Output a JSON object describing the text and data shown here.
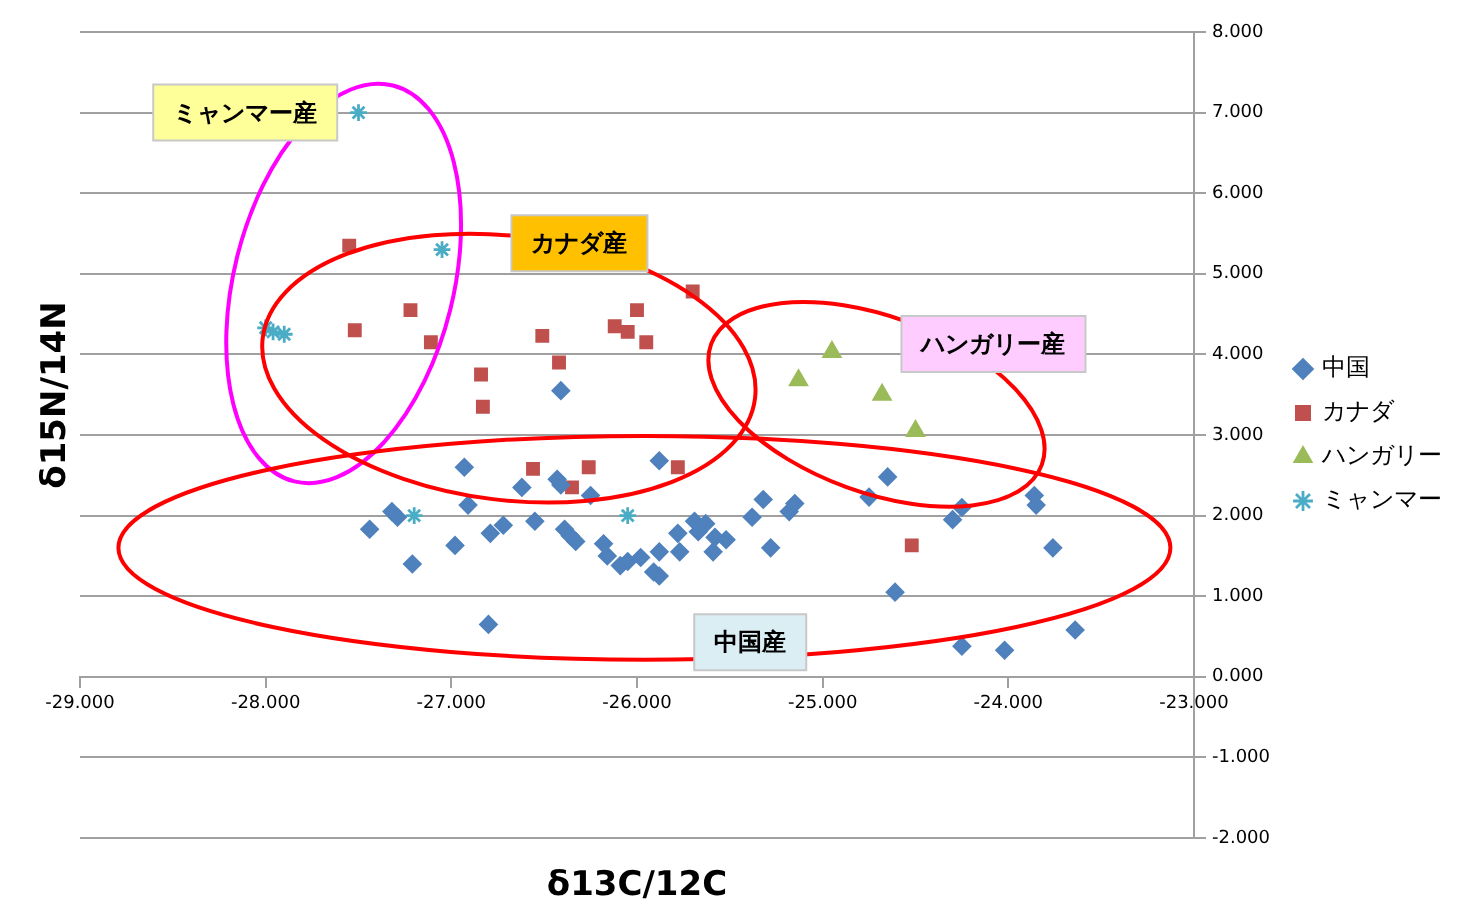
{
  "chart_data": {
    "type": "scatter",
    "xlabel": "δ13C/12C",
    "ylabel": "δ15N/14N",
    "xlim": [
      -29,
      -23
    ],
    "xticks": [
      {
        "value": -29,
        "label": "-29.000"
      },
      {
        "value": -28,
        "label": "-28.000"
      },
      {
        "value": -27,
        "label": "-27.000"
      },
      {
        "value": -26,
        "label": "-26.000"
      },
      {
        "value": -25,
        "label": "-25.000"
      },
      {
        "value": -24,
        "label": "-24.000"
      },
      {
        "value": -23,
        "label": "-23.000"
      }
    ],
    "ylim": [
      -2,
      8
    ],
    "yticks": [
      {
        "value": -2,
        "label": "-2.000"
      },
      {
        "value": -1,
        "label": "-1.000"
      },
      {
        "value": 0,
        "label": "0.000"
      },
      {
        "value": 1,
        "label": "1.000"
      },
      {
        "value": 2,
        "label": "2.000"
      },
      {
        "value": 3,
        "label": "3.000"
      },
      {
        "value": 4,
        "label": "4.000"
      },
      {
        "value": 5,
        "label": "5.000"
      },
      {
        "value": 6,
        "label": "6.000"
      },
      {
        "value": 7,
        "label": "7.000"
      },
      {
        "value": 8,
        "label": "8.000"
      }
    ],
    "grid": "y",
    "legend": "right",
    "series": [
      {
        "name": "中国",
        "color": "#4f81bd",
        "marker": "diamond",
        "x": [
          -26.41,
          -26.93,
          -26.91,
          -27.44,
          -27.32,
          -27.29,
          -27.21,
          -26.98,
          -26.8,
          -26.79,
          -26.72,
          -26.62,
          -26.55,
          -26.43,
          -26.41,
          -26.39,
          -26.36,
          -26.33,
          -26.25,
          -26.18,
          -26.16,
          -26.09,
          -26.05,
          -25.98,
          -25.88,
          -25.88,
          -25.91,
          -25.88,
          -25.78,
          -25.77,
          -25.69,
          -25.67,
          -25.63,
          -25.59,
          -25.58,
          -25.52,
          -25.38,
          -25.32,
          -25.28,
          -25.18,
          -25.15,
          -24.75,
          -24.65,
          -24.61,
          -24.3,
          -24.25,
          -24.25,
          -24.02,
          -23.86,
          -23.85,
          -23.76,
          -23.64
        ],
        "values": [
          3.55,
          2.6,
          2.13,
          1.83,
          2.05,
          1.98,
          1.4,
          1.63,
          0.65,
          1.78,
          1.88,
          2.35,
          1.93,
          2.45,
          2.38,
          1.83,
          1.75,
          1.68,
          2.25,
          1.65,
          1.5,
          1.38,
          1.43,
          1.48,
          2.68,
          1.55,
          1.3,
          1.25,
          1.78,
          1.55,
          1.93,
          1.8,
          1.9,
          1.55,
          1.73,
          1.7,
          1.98,
          2.2,
          1.6,
          2.05,
          2.15,
          2.23,
          2.48,
          1.05,
          1.95,
          2.1,
          0.38,
          0.33,
          2.25,
          2.13,
          1.6,
          0.58
        ]
      },
      {
        "name": "カナダ",
        "color": "#c0504d",
        "marker": "square",
        "x": [
          -27.55,
          -27.22,
          -27.52,
          -27.11,
          -26.84,
          -26.83,
          -26.51,
          -26.42,
          -26.56,
          -26.35,
          -26.26,
          -26.12,
          -26.05,
          -26.0,
          -25.95,
          -25.78,
          -25.7,
          -24.52
        ],
        "values": [
          5.35,
          4.55,
          4.3,
          4.15,
          3.75,
          3.35,
          4.23,
          3.9,
          2.58,
          2.35,
          2.6,
          4.35,
          4.28,
          4.55,
          4.15,
          2.6,
          4.78,
          1.63
        ]
      },
      {
        "name": "ハンガリー",
        "color": "#9bbb59",
        "marker": "triangle",
        "x": [
          -25.13,
          -24.95,
          -24.68,
          -24.5
        ],
        "values": [
          3.68,
          4.03,
          3.5,
          3.05
        ]
      },
      {
        "name": "ミャンマー",
        "color": "#4bacc6",
        "marker": "cross",
        "x": [
          -27.5,
          -27.05,
          -28.0,
          -27.96,
          -27.9,
          -27.2,
          -26.05
        ],
        "values": [
          7.0,
          5.3,
          4.33,
          4.28,
          4.25,
          2.0,
          2.0
        ]
      }
    ],
    "annotations": [
      "ミャンマー産",
      "カナダ産",
      "ハンガリー産",
      "中国産"
    ]
  }
}
